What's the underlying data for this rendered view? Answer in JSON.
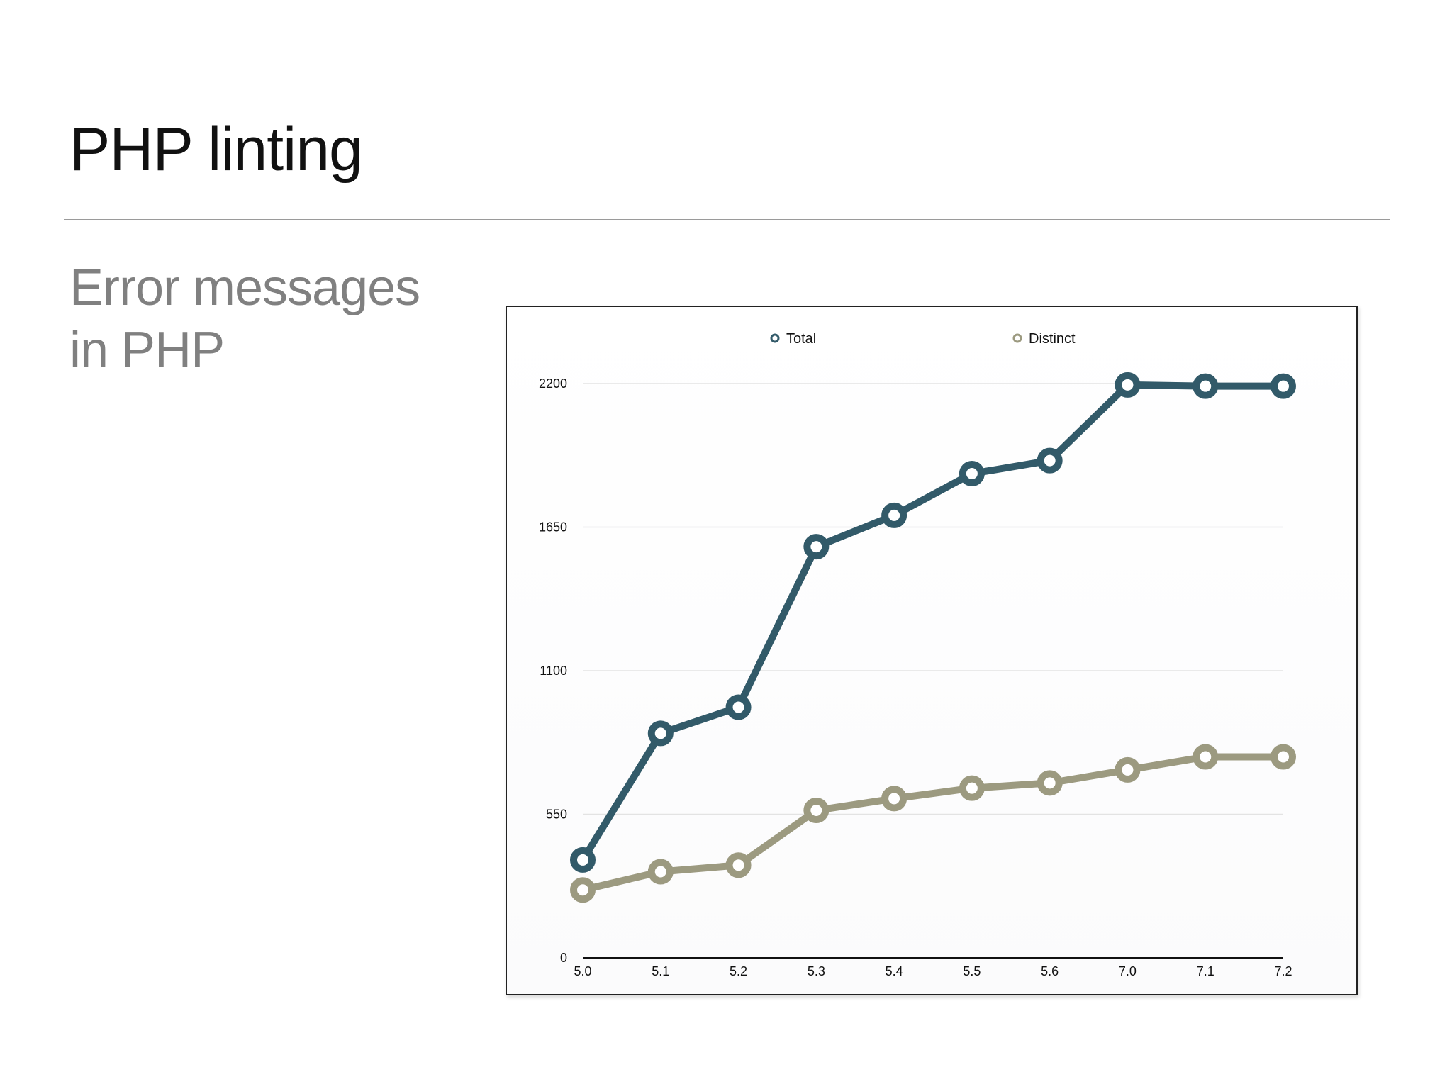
{
  "slide": {
    "title": "PHP linting",
    "subtitle_lines": [
      "Error messages",
      "in PHP"
    ]
  },
  "colors": {
    "total": "#325a69",
    "distinct": "#9c9a80",
    "gridline": "#e3e3e3",
    "axis": "#111111"
  },
  "chart_data": {
    "type": "line",
    "title": "",
    "xlabel": "",
    "ylabel": "",
    "categories": [
      "5.0",
      "5.1",
      "5.2",
      "5.3",
      "5.4",
      "5.5",
      "5.6",
      "7.0",
      "7.1",
      "7.2"
    ],
    "y_ticks": [
      "0",
      "550",
      "1100",
      "1650",
      "2200"
    ],
    "ylim": [
      0,
      2200
    ],
    "grid": true,
    "legend_position": "top",
    "series": [
      {
        "name": "Total",
        "color": "#325a69",
        "values": [
          375,
          860,
          960,
          1575,
          1695,
          1855,
          1905,
          2195,
          2190,
          2190
        ]
      },
      {
        "name": "Distinct",
        "color": "#9c9a80",
        "values": [
          260,
          330,
          355,
          565,
          610,
          650,
          670,
          720,
          770,
          770
        ]
      }
    ]
  }
}
